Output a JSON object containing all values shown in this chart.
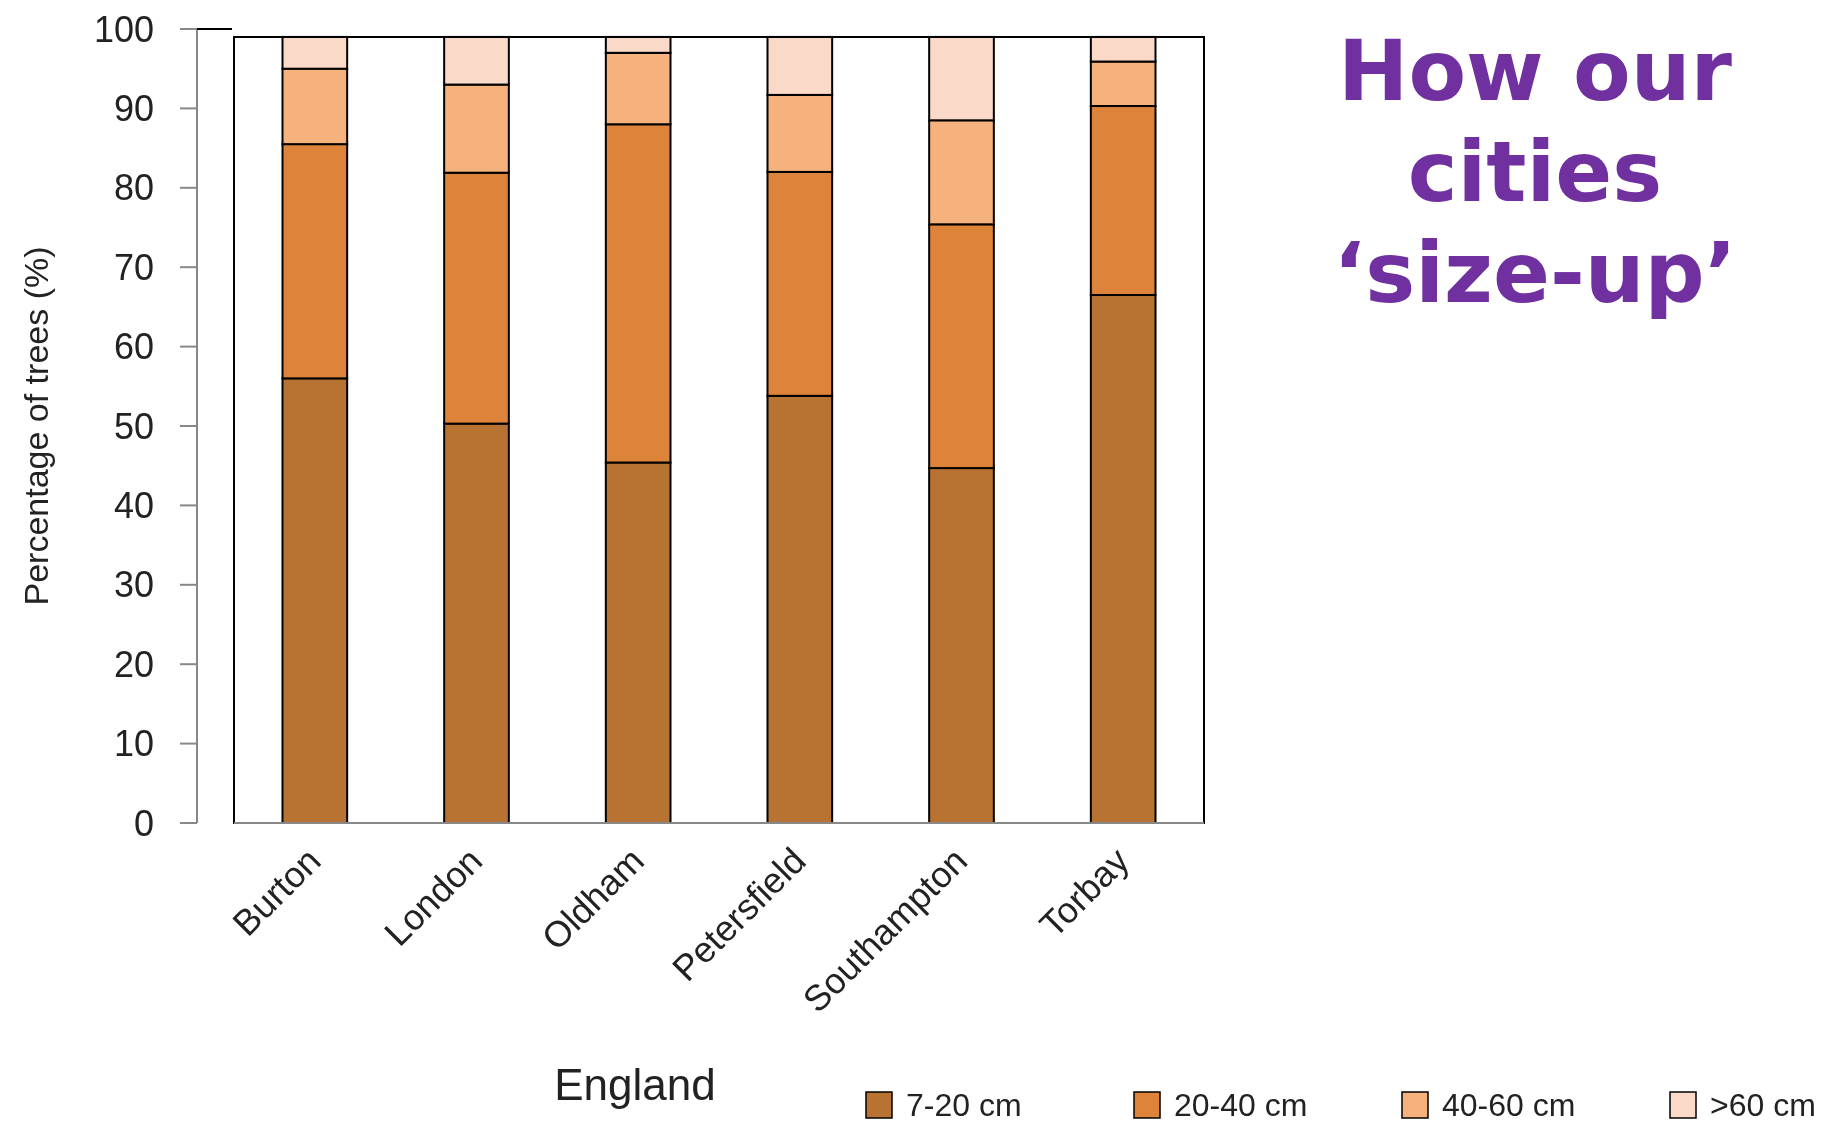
{
  "chart_data": {
    "type": "bar",
    "stacked": true,
    "title": "How our cities ‘size-up’",
    "xlabel": "England",
    "ylabel": "Percentage of trees (%)",
    "categories": [
      "Burton",
      "London",
      "Oldham",
      "Petersfield",
      "Southampton",
      "Torbay"
    ],
    "series": [
      {
        "name": "7-20 cm",
        "color": "#b87333",
        "values": [
          56,
          50.3,
          45.4,
          53.8,
          44.7,
          66.5
        ]
      },
      {
        "name": "20-40 cm",
        "color": "#dd843a",
        "values": [
          29.5,
          31.6,
          42.6,
          28.2,
          30.7,
          23.8
        ]
      },
      {
        "name": "40-60 cm",
        "color": "#f5b27c",
        "values": [
          9.5,
          11.1,
          9,
          9.7,
          13.1,
          5.6
        ]
      },
      {
        "name": ">60 cm",
        "color": "#fbd9c8",
        "values": [
          4,
          6,
          2,
          7.3,
          10.5,
          3.1
        ]
      }
    ],
    "ylim": [
      0,
      100
    ],
    "yticks": [
      0,
      10,
      20,
      30,
      40,
      50,
      60,
      70,
      80,
      90,
      100
    ],
    "legend": "bottom"
  }
}
